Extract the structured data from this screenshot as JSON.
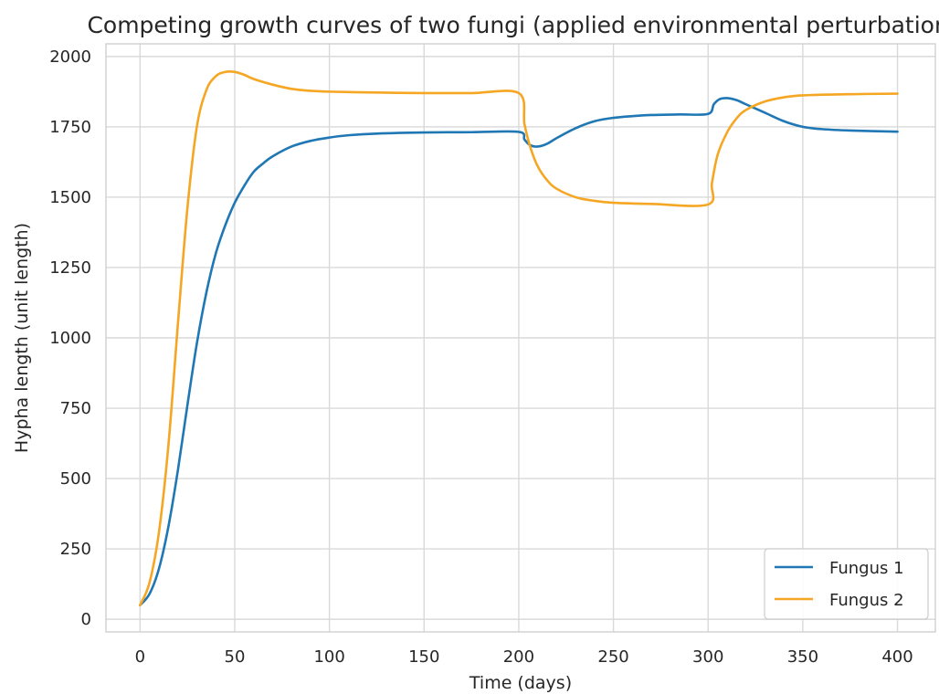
{
  "chart_data": {
    "type": "line",
    "title": "Competing growth curves of two fungi (applied environmental perturbation)",
    "xlabel": "Time (days)",
    "ylabel": "Hypha length (unit length)",
    "xlim": [
      -18,
      420
    ],
    "ylim": [
      -45,
      2045
    ],
    "xticks": [
      0,
      50,
      100,
      150,
      200,
      250,
      300,
      350,
      400
    ],
    "yticks": [
      0,
      250,
      500,
      750,
      1000,
      1250,
      1500,
      1750,
      2000
    ],
    "grid": true,
    "legend_position": "bottom-right",
    "series": [
      {
        "name": "Fungus 1",
        "color": "#1f77b4",
        "x": [
          0,
          5,
          10,
          15,
          20,
          25,
          30,
          35,
          40,
          45,
          50,
          55,
          60,
          65,
          70,
          80,
          90,
          100,
          110,
          125,
          150,
          175,
          200,
          203,
          206,
          210,
          215,
          220,
          230,
          240,
          250,
          260,
          270,
          285,
          300,
          303,
          306,
          310,
          315,
          320,
          330,
          340,
          350,
          360,
          375,
          400
        ],
        "y": [
          50,
          90,
          180,
          330,
          530,
          760,
          980,
          1160,
          1300,
          1400,
          1480,
          1540,
          1590,
          1620,
          1645,
          1680,
          1700,
          1712,
          1720,
          1726,
          1730,
          1731,
          1732,
          1705,
          1685,
          1680,
          1690,
          1710,
          1745,
          1770,
          1782,
          1788,
          1792,
          1794,
          1796,
          1830,
          1848,
          1852,
          1845,
          1830,
          1800,
          1770,
          1750,
          1742,
          1737,
          1733
        ]
      },
      {
        "name": "Fungus 2",
        "color": "#f5a623",
        "x": [
          0,
          5,
          10,
          15,
          20,
          25,
          30,
          35,
          40,
          45,
          50,
          55,
          60,
          70,
          80,
          90,
          100,
          125,
          150,
          175,
          200,
          203,
          206,
          210,
          215,
          220,
          230,
          240,
          250,
          270,
          300,
          302,
          305,
          310,
          315,
          320,
          330,
          340,
          350,
          375,
          400
        ],
        "y": [
          50,
          130,
          310,
          620,
          1050,
          1460,
          1750,
          1880,
          1930,
          1945,
          1945,
          1935,
          1920,
          1900,
          1885,
          1878,
          1875,
          1872,
          1870,
          1870,
          1870,
          1760,
          1680,
          1610,
          1560,
          1530,
          1500,
          1487,
          1480,
          1476,
          1474,
          1550,
          1650,
          1730,
          1780,
          1810,
          1840,
          1855,
          1862,
          1866,
          1868
        ]
      }
    ]
  }
}
